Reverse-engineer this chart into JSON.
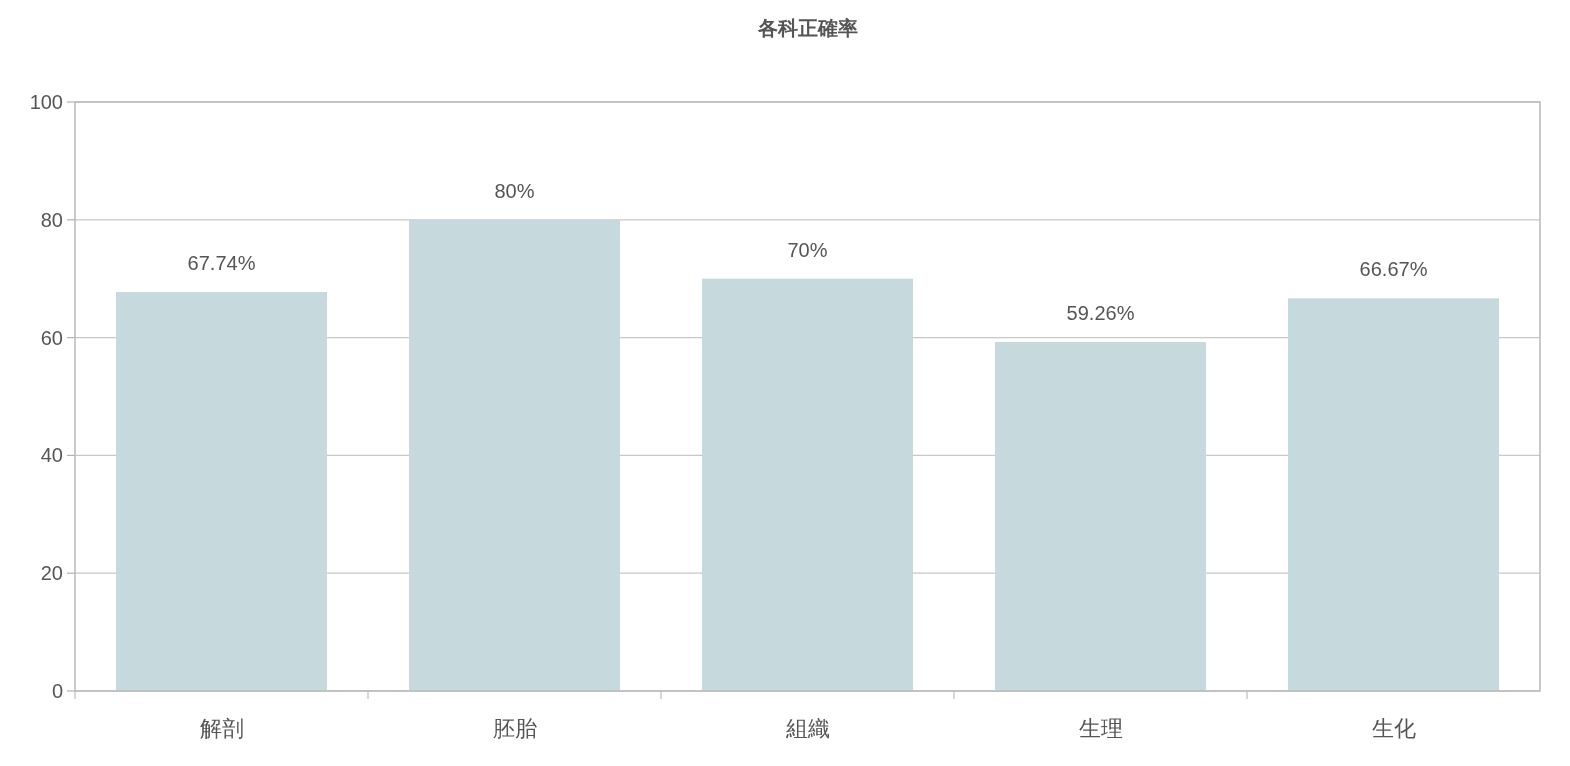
{
  "chart_data": {
    "type": "bar",
    "title": "各科正確率",
    "categories": [
      "解剖",
      "胚胎",
      "組織",
      "生理",
      "生化"
    ],
    "values": [
      67.74,
      80,
      70,
      59.26,
      66.67
    ],
    "value_labels": [
      "67.74%",
      "80%",
      "70%",
      "59.26%",
      "66.67%"
    ],
    "color": "#c6d9dc",
    "ylim": [
      0,
      100
    ],
    "yticks": [
      0,
      20,
      40,
      60,
      80,
      100
    ],
    "grid": "y"
  }
}
